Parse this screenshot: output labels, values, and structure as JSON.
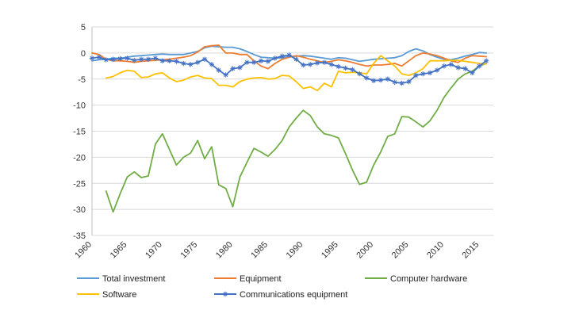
{
  "chart_data": {
    "type": "line",
    "title": "",
    "xlabel": "",
    "ylabel": "",
    "xlim": [
      1960,
      2017
    ],
    "ylim": [
      -35,
      5
    ],
    "y_ticks": [
      5,
      0,
      -5,
      -10,
      -15,
      -20,
      -25,
      -30,
      -35
    ],
    "x_ticks": [
      1960,
      1965,
      1970,
      1975,
      1980,
      1985,
      1990,
      1995,
      2000,
      2005,
      2010,
      2015
    ],
    "grid": "horizontal",
    "legend_position": "bottom",
    "series": [
      {
        "name": "Total investment",
        "color": "#5B9BD5",
        "marker": "none",
        "x": [
          1960,
          1961,
          1962,
          1963,
          1964,
          1965,
          1966,
          1967,
          1968,
          1969,
          1970,
          1971,
          1972,
          1973,
          1974,
          1975,
          1976,
          1977,
          1978,
          1979,
          1980,
          1981,
          1982,
          1983,
          1984,
          1985,
          1986,
          1987,
          1988,
          1989,
          1990,
          1991,
          1992,
          1993,
          1994,
          1995,
          1996,
          1997,
          1998,
          1999,
          2000,
          2001,
          2002,
          2003,
          2004,
          2005,
          2006,
          2007,
          2008,
          2009,
          2010,
          2011,
          2012,
          2013,
          2014,
          2015,
          2016
        ],
        "y": [
          -1.5,
          -1.3,
          -1.2,
          -1.0,
          -1.0,
          -0.8,
          -0.6,
          -0.5,
          -0.4,
          -0.3,
          -0.2,
          -0.3,
          -0.3,
          -0.3,
          0.0,
          0.3,
          1.0,
          1.3,
          1.2,
          1.1,
          1.1,
          0.8,
          0.3,
          -0.3,
          -0.8,
          -0.9,
          -1.0,
          -0.9,
          -0.7,
          -0.6,
          -0.5,
          -0.6,
          -0.8,
          -1.0,
          -1.2,
          -0.9,
          -1.0,
          -1.3,
          -1.6,
          -1.4,
          -1.2,
          -1.1,
          -1.0,
          -0.9,
          -0.5,
          0.3,
          0.8,
          0.4,
          -0.3,
          -0.8,
          -1.2,
          -1.3,
          -1.0,
          -0.6,
          -0.3,
          0.1,
          0.0
        ]
      },
      {
        "name": "Equipment",
        "color": "#ED7D31",
        "marker": "none",
        "x": [
          1960,
          1961,
          1962,
          1963,
          1964,
          1965,
          1966,
          1967,
          1968,
          1969,
          1970,
          1971,
          1972,
          1973,
          1974,
          1975,
          1976,
          1977,
          1978,
          1979,
          1980,
          1981,
          1982,
          1983,
          1984,
          1985,
          1986,
          1987,
          1988,
          1989,
          1990,
          1991,
          1992,
          1993,
          1994,
          1995,
          1996,
          1997,
          1998,
          1999,
          2000,
          2001,
          2002,
          2003,
          2004,
          2005,
          2006,
          2007,
          2008,
          2009,
          2010,
          2011,
          2012,
          2013,
          2014,
          2015,
          2016
        ],
        "y": [
          0.0,
          -0.3,
          -1.2,
          -1.5,
          -1.5,
          -1.6,
          -1.8,
          -1.6,
          -1.5,
          -1.4,
          -1.3,
          -1.2,
          -1.0,
          -0.8,
          -0.5,
          0.2,
          1.2,
          1.4,
          1.5,
          0.0,
          0.0,
          -0.3,
          -0.3,
          -1.5,
          -2.5,
          -3.0,
          -2.0,
          -1.2,
          -0.8,
          -0.5,
          -0.8,
          -1.2,
          -1.5,
          -1.8,
          -1.6,
          -1.3,
          -1.5,
          -1.8,
          -2.2,
          -2.5,
          -2.3,
          -2.3,
          -2.2,
          -2.0,
          -2.5,
          -1.5,
          -0.5,
          0.0,
          -0.2,
          -0.5,
          -1.0,
          -1.5,
          -1.8,
          -1.0,
          -0.5,
          -0.6,
          -0.7
        ]
      },
      {
        "name": "Computer hardware",
        "color": "#70AD47",
        "marker": "none",
        "x": [
          1962,
          1963,
          1964,
          1965,
          1966,
          1967,
          1968,
          1969,
          1970,
          1971,
          1972,
          1973,
          1974,
          1975,
          1976,
          1977,
          1978,
          1979,
          1980,
          1981,
          1982,
          1983,
          1984,
          1985,
          1986,
          1987,
          1988,
          1989,
          1990,
          1991,
          1992,
          1993,
          1994,
          1995,
          1996,
          1997,
          1998,
          1999,
          2000,
          2001,
          2002,
          2003,
          2004,
          2005,
          2006,
          2007,
          2008,
          2009,
          2010,
          2011,
          2012,
          2013,
          2014,
          2015,
          2016
        ],
        "y": [
          -26.5,
          -30.5,
          -27.0,
          -23.8,
          -22.8,
          -23.9,
          -23.6,
          -17.5,
          -15.5,
          -18.5,
          -21.5,
          -20.0,
          -19.2,
          -16.8,
          -20.3,
          -18.0,
          -25.3,
          -26.0,
          -29.5,
          -23.8,
          -21.0,
          -18.3,
          -19.0,
          -19.8,
          -18.5,
          -16.8,
          -14.2,
          -12.5,
          -11.0,
          -12.0,
          -14.2,
          -15.5,
          -15.8,
          -16.3,
          -19.3,
          -22.5,
          -25.2,
          -24.8,
          -21.5,
          -19.0,
          -16.0,
          -15.5,
          -12.2,
          -12.3,
          -13.2,
          -14.2,
          -13.0,
          -11.0,
          -8.5,
          -6.7,
          -5.0,
          -4.0,
          -3.5,
          -2.5,
          -2.0
        ]
      },
      {
        "name": "Software",
        "color": "#FFC000",
        "marker": "none",
        "x": [
          1962,
          1963,
          1964,
          1965,
          1966,
          1967,
          1968,
          1969,
          1970,
          1971,
          1972,
          1973,
          1974,
          1975,
          1976,
          1977,
          1978,
          1979,
          1980,
          1981,
          1982,
          1983,
          1984,
          1985,
          1986,
          1987,
          1988,
          1989,
          1990,
          1991,
          1992,
          1993,
          1994,
          1995,
          1996,
          1997,
          1998,
          1999,
          2000,
          2001,
          2002,
          2003,
          2004,
          2005,
          2006,
          2007,
          2008,
          2009,
          2010,
          2011,
          2012,
          2013,
          2014,
          2015,
          2016
        ],
        "y": [
          -4.8,
          -4.5,
          -3.8,
          -3.3,
          -3.5,
          -4.7,
          -4.6,
          -4.0,
          -3.8,
          -4.8,
          -5.5,
          -5.2,
          -4.6,
          -4.3,
          -4.8,
          -4.9,
          -6.2,
          -6.2,
          -6.5,
          -5.5,
          -5.0,
          -4.8,
          -4.7,
          -5.0,
          -4.9,
          -4.3,
          -4.4,
          -5.5,
          -6.8,
          -6.5,
          -7.2,
          -5.8,
          -6.5,
          -3.5,
          -3.8,
          -3.7,
          -3.8,
          -4.0,
          -2.0,
          -0.5,
          -1.5,
          -2.5,
          -4.0,
          -4.3,
          -3.8,
          -3.0,
          -1.5,
          -1.5,
          -1.5,
          -1.4,
          -1.4,
          -1.6,
          -1.8,
          -2.0,
          -2.1
        ]
      },
      {
        "name": "Communications equipment",
        "color": "#4472C4",
        "marker": "asterisk",
        "x": [
          1960,
          1961,
          1962,
          1963,
          1964,
          1965,
          1966,
          1967,
          1968,
          1969,
          1970,
          1971,
          1972,
          1973,
          1974,
          1975,
          1976,
          1977,
          1978,
          1979,
          1980,
          1981,
          1982,
          1983,
          1984,
          1985,
          1986,
          1987,
          1988,
          1989,
          1990,
          1991,
          1992,
          1993,
          1994,
          1995,
          1996,
          1997,
          1998,
          1999,
          2000,
          2001,
          2002,
          2003,
          2004,
          2005,
          2006,
          2007,
          2008,
          2009,
          2010,
          2011,
          2012,
          2013,
          2014,
          2015,
          2016
        ],
        "y": [
          -1.0,
          -0.8,
          -1.3,
          -1.2,
          -1.1,
          -1.0,
          -1.4,
          -1.2,
          -1.2,
          -1.0,
          -1.5,
          -1.5,
          -1.6,
          -2.0,
          -2.2,
          -1.8,
          -1.2,
          -2.2,
          -3.3,
          -4.2,
          -3.0,
          -2.8,
          -1.8,
          -1.8,
          -1.5,
          -1.6,
          -1.0,
          -0.6,
          -0.4,
          -1.2,
          -2.3,
          -2.2,
          -1.9,
          -1.8,
          -2.2,
          -2.6,
          -2.9,
          -3.2,
          -4.0,
          -4.8,
          -5.3,
          -5.2,
          -5.0,
          -5.6,
          -5.8,
          -5.5,
          -4.3,
          -4.0,
          -3.8,
          -3.3,
          -2.5,
          -2.2,
          -2.8,
          -3.0,
          -3.8,
          -2.5,
          -1.5
        ]
      }
    ]
  }
}
